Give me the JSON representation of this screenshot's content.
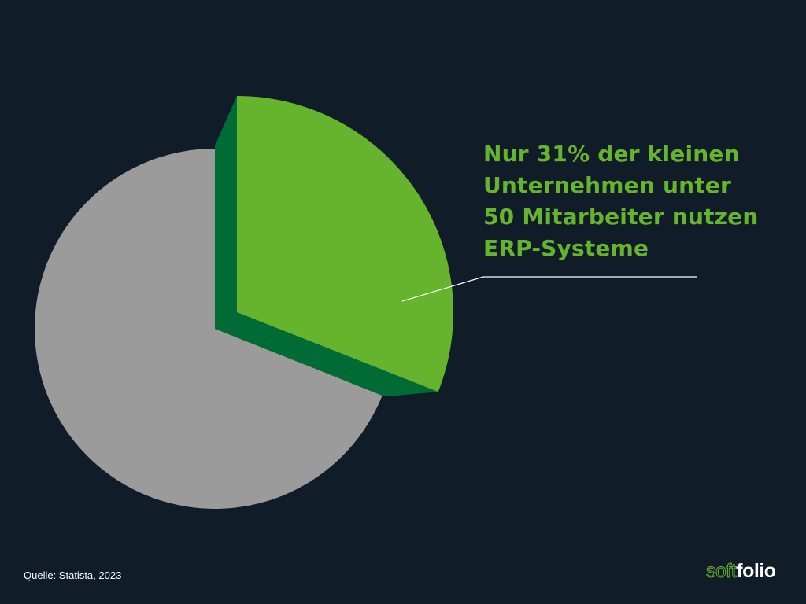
{
  "chart_data": {
    "type": "pie",
    "title": "",
    "slices": [
      {
        "label": "Nutzen ERP-Systeme",
        "value": 31,
        "color": "#66b32e",
        "side_color": "#006b35",
        "exploded": true
      },
      {
        "label": "",
        "value": 69,
        "color": "#9b9b9b"
      }
    ],
    "annotation": {
      "lines": [
        "Nur 31% der kleinen",
        "Unternehmen unter",
        "50 Mitarbeiter nutzen",
        "ERP-Systeme"
      ],
      "color": "#66b32e",
      "leader_color": "#ffffff"
    }
  },
  "source": "Quelle: Statista, 2023",
  "logo": {
    "part1": "soft",
    "part2": "folio"
  },
  "colors": {
    "background": "#101c27"
  }
}
